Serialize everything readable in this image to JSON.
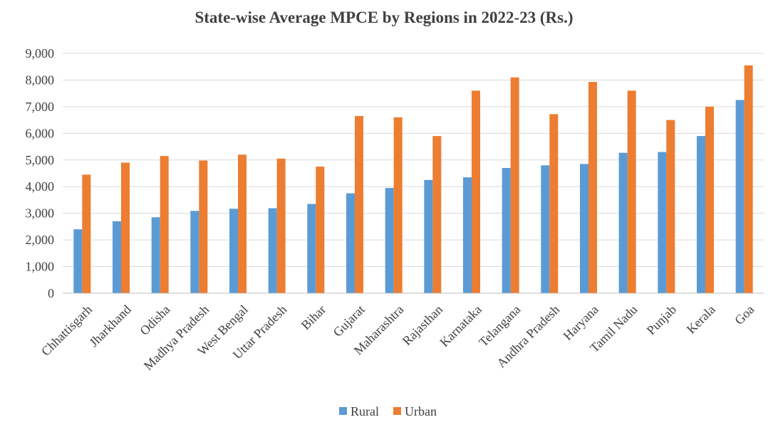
{
  "chart_data": {
    "type": "bar",
    "title": "State-wise Average MPCE by Regions in 2022-23 (Rs.)",
    "xlabel": "",
    "ylabel": "",
    "ylim": [
      0,
      9000
    ],
    "yticks": [
      0,
      1000,
      2000,
      3000,
      4000,
      5000,
      6000,
      7000,
      8000,
      9000
    ],
    "ytick_labels": [
      "0",
      "1,000",
      "2,000",
      "3,000",
      "4,000",
      "5,000",
      "6,000",
      "7,000",
      "8,000",
      "9,000"
    ],
    "grid": true,
    "legend_position": "bottom",
    "categories": [
      "Chhattisgarh",
      "Jharkhand",
      "Odisha",
      "Madhya Pradesh",
      "West Bengal",
      "Uttar Pradesh",
      "Bihar",
      "Gujarat",
      "Maharashtra",
      "Rajasthan",
      "Karnataka",
      "Telangana",
      "Andhra Pradesh",
      "Haryana",
      "Tamil Nadu",
      "Punjab",
      "Kerala",
      "Goa"
    ],
    "series": [
      {
        "name": "Rural",
        "color": "#5B9BD5",
        "values": [
          2400,
          2700,
          2850,
          3090,
          3170,
          3190,
          3350,
          3750,
          3950,
          4250,
          4350,
          4700,
          4800,
          4850,
          5270,
          5300,
          5900,
          7250
        ]
      },
      {
        "name": "Urban",
        "color": "#ED7D31",
        "values": [
          4450,
          4900,
          5150,
          4980,
          5200,
          5050,
          4750,
          6650,
          6600,
          5900,
          7600,
          8100,
          6720,
          7930,
          7600,
          6500,
          7000,
          8550
        ]
      }
    ]
  }
}
